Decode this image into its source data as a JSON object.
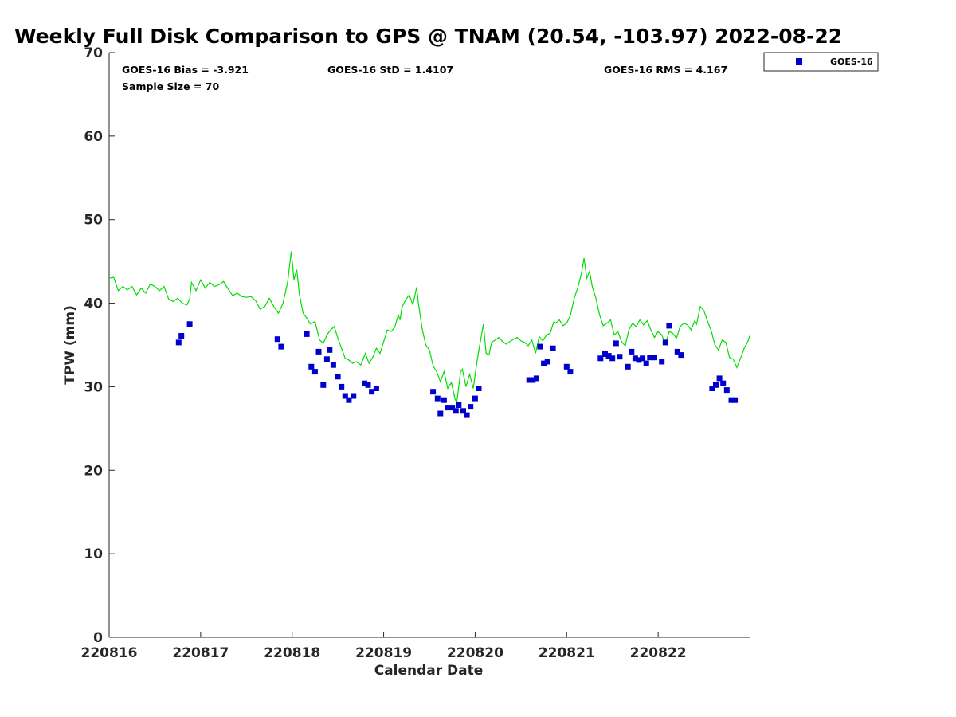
{
  "chart_data": {
    "type": "scatter",
    "title": "Weekly Full Disk Comparison to GPS @ TNAM (20.54, -103.97) 2022-08-22",
    "xlabel": "Calendar Date",
    "ylabel": "TPW (mm)",
    "x_tick_labels": [
      "220816",
      "220817",
      "220818",
      "220819",
      "220820",
      "220821",
      "220822"
    ],
    "x_tick_days": [
      0,
      1,
      2,
      3,
      4,
      5,
      6
    ],
    "xlim_days": [
      0,
      7
    ],
    "ylim": [
      0,
      70
    ],
    "y_ticks": [
      0,
      10,
      20,
      30,
      40,
      50,
      60,
      70
    ],
    "y_tick_labels": [
      "0",
      "10",
      "20",
      "30",
      "40",
      "50",
      "60",
      "70"
    ],
    "stats": {
      "bias": "GOES-16 Bias = -3.921",
      "std": "GOES-16 StD = 1.4107",
      "rms": "GOES-16 RMS = 4.167",
      "sample": "Sample Size = 70"
    },
    "legend": {
      "label": "GOES-16",
      "position": "outside-top-right"
    },
    "colors": {
      "goes16": "#0000cc",
      "gps": "#00dd00"
    },
    "series": [
      {
        "name": "GOES-16",
        "kind": "scatter",
        "points": [
          [
            0.76,
            35.3
          ],
          [
            0.79,
            36.1
          ],
          [
            0.88,
            37.5
          ],
          [
            1.84,
            35.7
          ],
          [
            1.88,
            34.8
          ],
          [
            2.16,
            36.3
          ],
          [
            2.21,
            32.4
          ],
          [
            2.25,
            31.8
          ],
          [
            2.29,
            34.2
          ],
          [
            2.34,
            30.2
          ],
          [
            2.38,
            33.3
          ],
          [
            2.41,
            34.4
          ],
          [
            2.45,
            32.6
          ],
          [
            2.5,
            31.2
          ],
          [
            2.54,
            30.0
          ],
          [
            2.58,
            28.9
          ],
          [
            2.62,
            28.4
          ],
          [
            2.67,
            28.9
          ],
          [
            2.79,
            30.4
          ],
          [
            2.83,
            30.2
          ],
          [
            2.87,
            29.4
          ],
          [
            2.92,
            29.8
          ],
          [
            3.54,
            29.4
          ],
          [
            3.59,
            28.6
          ],
          [
            3.62,
            26.8
          ],
          [
            3.66,
            28.4
          ],
          [
            3.7,
            27.5
          ],
          [
            3.75,
            27.5
          ],
          [
            3.79,
            27.1
          ],
          [
            3.82,
            27.8
          ],
          [
            3.87,
            27.1
          ],
          [
            3.91,
            26.6
          ],
          [
            3.95,
            27.6
          ],
          [
            4.0,
            28.6
          ],
          [
            4.04,
            29.8
          ],
          [
            4.59,
            30.8
          ],
          [
            4.63,
            30.8
          ],
          [
            4.67,
            31.0
          ],
          [
            4.71,
            34.8
          ],
          [
            4.75,
            32.8
          ],
          [
            4.79,
            33.0
          ],
          [
            4.85,
            34.6
          ],
          [
            5.0,
            32.4
          ],
          [
            5.04,
            31.8
          ],
          [
            5.37,
            33.4
          ],
          [
            5.42,
            33.9
          ],
          [
            5.46,
            33.7
          ],
          [
            5.5,
            33.4
          ],
          [
            5.54,
            35.2
          ],
          [
            5.58,
            33.6
          ],
          [
            5.67,
            32.4
          ],
          [
            5.71,
            34.2
          ],
          [
            5.75,
            33.4
          ],
          [
            5.79,
            33.2
          ],
          [
            5.83,
            33.4
          ],
          [
            5.87,
            32.8
          ],
          [
            5.91,
            33.5
          ],
          [
            5.96,
            33.5
          ],
          [
            6.04,
            33.0
          ],
          [
            6.08,
            35.3
          ],
          [
            6.12,
            37.3
          ],
          [
            6.21,
            34.2
          ],
          [
            6.25,
            33.8
          ],
          [
            6.59,
            29.8
          ],
          [
            6.63,
            30.2
          ],
          [
            6.67,
            31.0
          ],
          [
            6.71,
            30.4
          ],
          [
            6.75,
            29.6
          ],
          [
            6.8,
            28.4
          ],
          [
            6.84,
            28.4
          ]
        ]
      },
      {
        "kind": "line",
        "points": [
          [
            0.0,
            43.0
          ],
          [
            0.05,
            43.1
          ],
          [
            0.1,
            41.5
          ],
          [
            0.15,
            42.0
          ],
          [
            0.2,
            41.6
          ],
          [
            0.25,
            42.0
          ],
          [
            0.3,
            41.0
          ],
          [
            0.35,
            41.8
          ],
          [
            0.4,
            41.2
          ],
          [
            0.45,
            42.3
          ],
          [
            0.5,
            42.0
          ],
          [
            0.55,
            41.5
          ],
          [
            0.6,
            42.0
          ],
          [
            0.65,
            40.5
          ],
          [
            0.7,
            40.2
          ],
          [
            0.75,
            40.6
          ],
          [
            0.8,
            40.0
          ],
          [
            0.85,
            39.8
          ],
          [
            0.88,
            40.5
          ],
          [
            0.9,
            42.5
          ],
          [
            0.95,
            41.5
          ],
          [
            1.0,
            42.8
          ],
          [
            1.05,
            41.8
          ],
          [
            1.1,
            42.5
          ],
          [
            1.15,
            42.0
          ],
          [
            1.2,
            42.2
          ],
          [
            1.25,
            42.6
          ],
          [
            1.3,
            41.7
          ],
          [
            1.35,
            40.9
          ],
          [
            1.4,
            41.2
          ],
          [
            1.45,
            40.8
          ],
          [
            1.5,
            40.7
          ],
          [
            1.55,
            40.8
          ],
          [
            1.6,
            40.3
          ],
          [
            1.65,
            39.3
          ],
          [
            1.7,
            39.6
          ],
          [
            1.75,
            40.6
          ],
          [
            1.8,
            39.6
          ],
          [
            1.85,
            38.8
          ],
          [
            1.9,
            40.0
          ],
          [
            1.95,
            42.5
          ],
          [
            1.99,
            46.2
          ],
          [
            2.02,
            42.8
          ],
          [
            2.05,
            44.0
          ],
          [
            2.08,
            41.0
          ],
          [
            2.12,
            38.8
          ],
          [
            2.16,
            38.2
          ],
          [
            2.2,
            37.5
          ],
          [
            2.25,
            37.8
          ],
          [
            2.3,
            35.6
          ],
          [
            2.34,
            35.2
          ],
          [
            2.38,
            36.2
          ],
          [
            2.42,
            36.8
          ],
          [
            2.46,
            37.2
          ],
          [
            2.5,
            35.8
          ],
          [
            2.54,
            34.6
          ],
          [
            2.58,
            33.4
          ],
          [
            2.62,
            33.2
          ],
          [
            2.66,
            32.8
          ],
          [
            2.7,
            33.0
          ],
          [
            2.75,
            32.6
          ],
          [
            2.8,
            34.0
          ],
          [
            2.84,
            32.8
          ],
          [
            2.88,
            33.5
          ],
          [
            2.92,
            34.6
          ],
          [
            2.96,
            34.0
          ],
          [
            3.0,
            35.4
          ],
          [
            3.04,
            36.8
          ],
          [
            3.08,
            36.6
          ],
          [
            3.12,
            37.1
          ],
          [
            3.16,
            38.6
          ],
          [
            3.18,
            38.0
          ],
          [
            3.2,
            39.5
          ],
          [
            3.24,
            40.4
          ],
          [
            3.28,
            41.0
          ],
          [
            3.32,
            39.8
          ],
          [
            3.36,
            41.9
          ],
          [
            3.38,
            40.0
          ],
          [
            3.42,
            37.0
          ],
          [
            3.46,
            35.0
          ],
          [
            3.5,
            34.4
          ],
          [
            3.54,
            32.5
          ],
          [
            3.58,
            31.8
          ],
          [
            3.62,
            30.6
          ],
          [
            3.66,
            31.8
          ],
          [
            3.7,
            29.8
          ],
          [
            3.74,
            30.5
          ],
          [
            3.78,
            28.5
          ],
          [
            3.8,
            28.2
          ],
          [
            3.84,
            31.8
          ],
          [
            3.86,
            32.1
          ],
          [
            3.9,
            30.0
          ],
          [
            3.94,
            31.5
          ],
          [
            3.98,
            29.8
          ],
          [
            4.02,
            33.0
          ],
          [
            4.05,
            35.0
          ],
          [
            4.09,
            37.5
          ],
          [
            4.12,
            34.0
          ],
          [
            4.15,
            33.8
          ],
          [
            4.18,
            35.3
          ],
          [
            4.22,
            35.6
          ],
          [
            4.26,
            35.9
          ],
          [
            4.3,
            35.4
          ],
          [
            4.34,
            35.1
          ],
          [
            4.38,
            35.4
          ],
          [
            4.42,
            35.7
          ],
          [
            4.46,
            35.9
          ],
          [
            4.5,
            35.5
          ],
          [
            4.54,
            35.3
          ],
          [
            4.58,
            34.9
          ],
          [
            4.62,
            35.6
          ],
          [
            4.66,
            34.0
          ],
          [
            4.7,
            36.0
          ],
          [
            4.74,
            35.5
          ],
          [
            4.78,
            36.2
          ],
          [
            4.82,
            36.4
          ],
          [
            4.86,
            37.8
          ],
          [
            4.88,
            37.6
          ],
          [
            4.92,
            38.0
          ],
          [
            4.96,
            37.3
          ],
          [
            5.0,
            37.6
          ],
          [
            5.04,
            38.5
          ],
          [
            5.08,
            40.5
          ],
          [
            5.12,
            41.8
          ],
          [
            5.16,
            43.5
          ],
          [
            5.19,
            45.4
          ],
          [
            5.22,
            43.0
          ],
          [
            5.25,
            43.8
          ],
          [
            5.28,
            42.0
          ],
          [
            5.32,
            40.6
          ],
          [
            5.36,
            38.6
          ],
          [
            5.4,
            37.3
          ],
          [
            5.44,
            37.6
          ],
          [
            5.48,
            38.0
          ],
          [
            5.52,
            36.2
          ],
          [
            5.56,
            36.6
          ],
          [
            5.6,
            35.4
          ],
          [
            5.64,
            34.9
          ],
          [
            5.68,
            36.8
          ],
          [
            5.72,
            37.6
          ],
          [
            5.76,
            37.2
          ],
          [
            5.8,
            38.0
          ],
          [
            5.84,
            37.4
          ],
          [
            5.88,
            37.9
          ],
          [
            5.92,
            36.8
          ],
          [
            5.96,
            35.9
          ],
          [
            6.0,
            36.6
          ],
          [
            6.04,
            36.2
          ],
          [
            6.08,
            35.1
          ],
          [
            6.12,
            36.6
          ],
          [
            6.16,
            36.4
          ],
          [
            6.2,
            35.8
          ],
          [
            6.24,
            37.2
          ],
          [
            6.28,
            37.6
          ],
          [
            6.32,
            37.4
          ],
          [
            6.36,
            36.8
          ],
          [
            6.4,
            37.9
          ],
          [
            6.42,
            37.5
          ],
          [
            6.46,
            39.6
          ],
          [
            6.5,
            39.1
          ],
          [
            6.54,
            37.8
          ],
          [
            6.58,
            36.7
          ],
          [
            6.62,
            35.0
          ],
          [
            6.66,
            34.4
          ],
          [
            6.7,
            35.6
          ],
          [
            6.74,
            35.3
          ],
          [
            6.78,
            33.5
          ],
          [
            6.82,
            33.3
          ],
          [
            6.86,
            32.3
          ],
          [
            6.9,
            33.4
          ],
          [
            6.94,
            34.6
          ],
          [
            6.98,
            35.4
          ],
          [
            7.0,
            36.1
          ]
        ]
      }
    ]
  }
}
